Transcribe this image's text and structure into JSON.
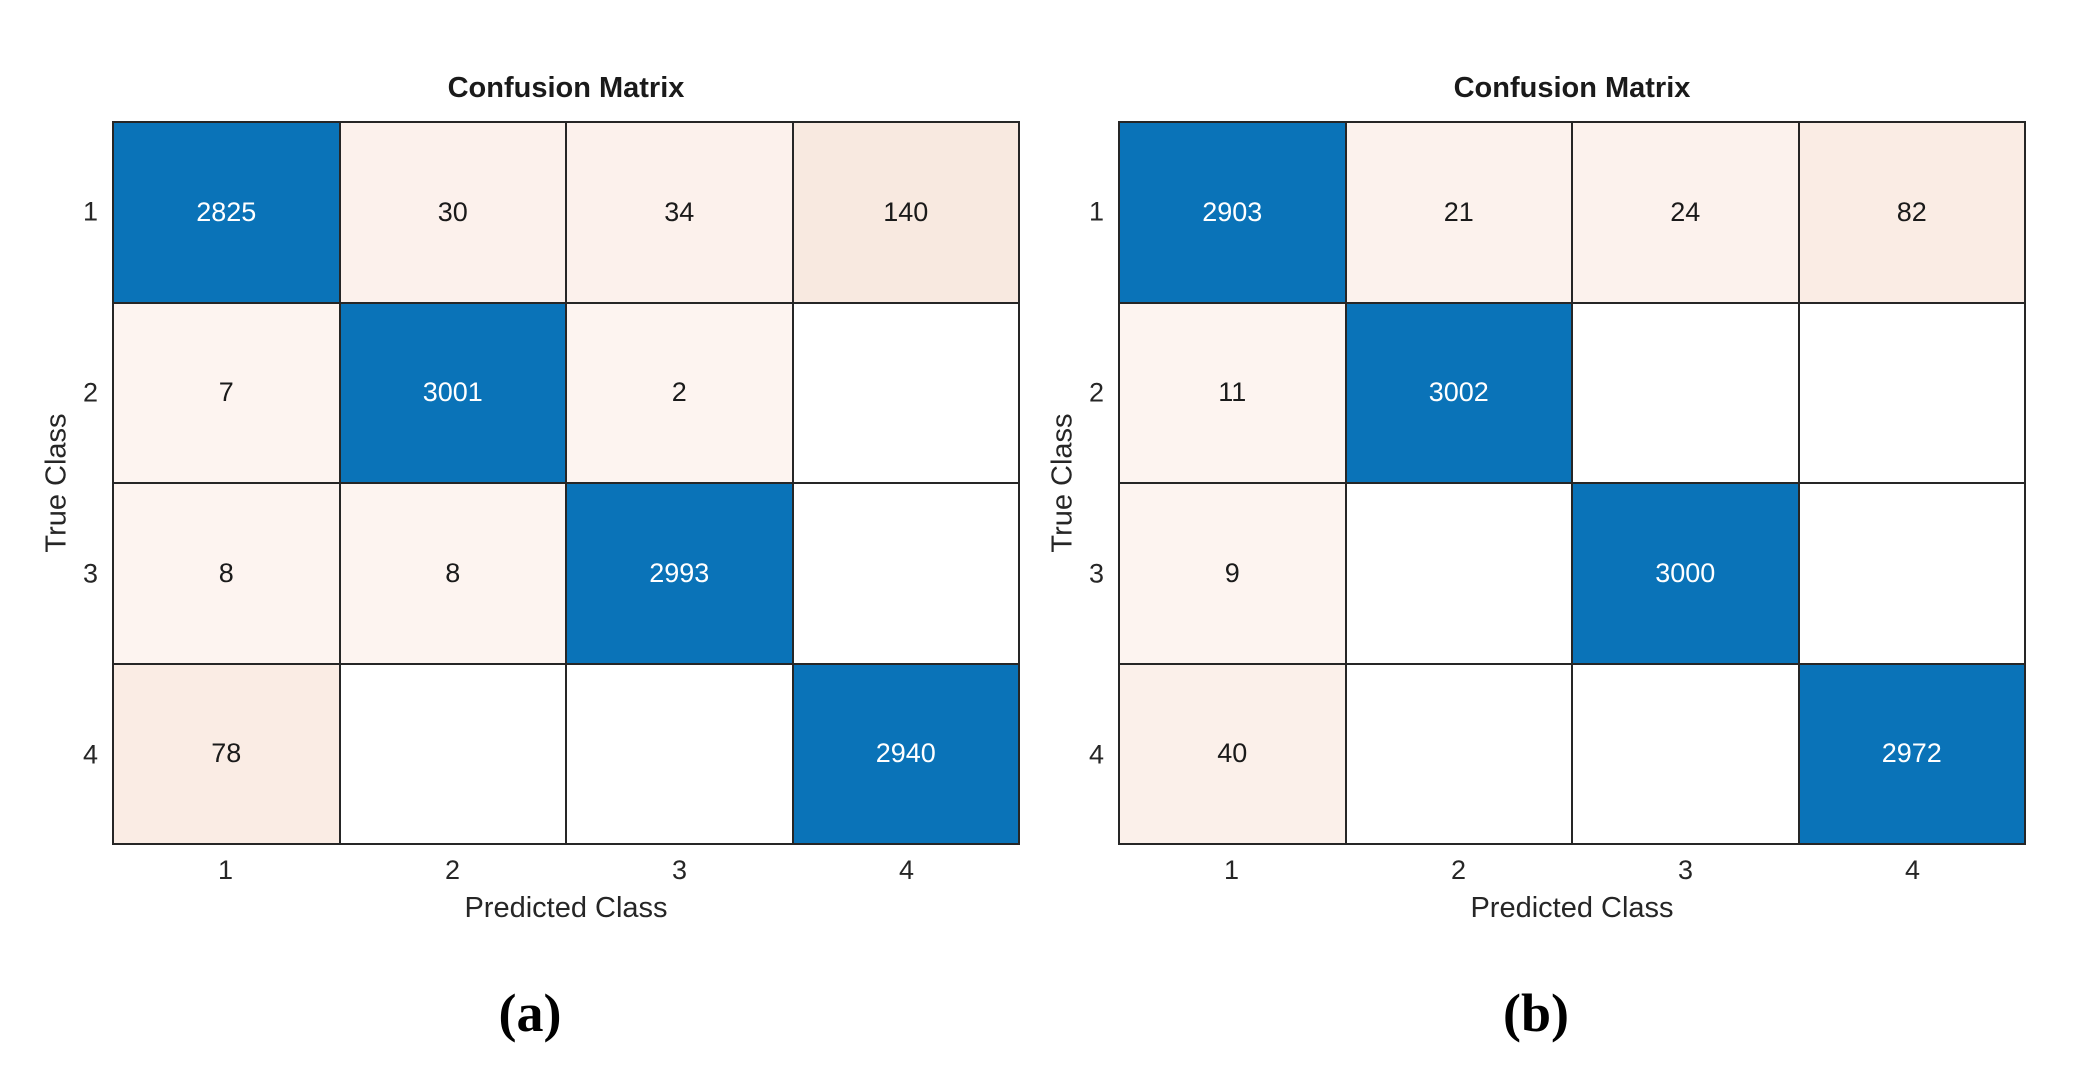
{
  "colors": {
    "background": "#ffffff",
    "diagonal_fill": "#0a73b8",
    "grid_line": "#262626",
    "axis_text": "#262626",
    "value_text_on_diagonal": "#ffffff",
    "value_text_on_light": "#1a1a1a"
  },
  "chart_data": [
    {
      "type": "heatmap",
      "panel": "a",
      "title": "Confusion Matrix",
      "xlabel": "Predicted Class",
      "ylabel": "True Class",
      "x_ticks": [
        "1",
        "2",
        "3",
        "4"
      ],
      "y_ticks": [
        "1",
        "2",
        "3",
        "4"
      ],
      "caption": "(a)",
      "matrix": [
        [
          2825,
          30,
          34,
          140
        ],
        [
          7,
          3001,
          2,
          0
        ],
        [
          8,
          8,
          2993,
          0
        ],
        [
          78,
          0,
          0,
          2940
        ]
      ],
      "cell_fills": [
        [
          "#0a73b8",
          "#fcf1ec",
          "#fcf1ec",
          "#f8e9e0"
        ],
        [
          "#fdf4f0",
          "#0a73b8",
          "#fdf4f0",
          "#ffffff"
        ],
        [
          "#fdf4f0",
          "#fdf4f0",
          "#0a73b8",
          "#ffffff"
        ],
        [
          "#faece4",
          "#ffffff",
          "#ffffff",
          "#0a73b8"
        ]
      ]
    },
    {
      "type": "heatmap",
      "panel": "b",
      "title": "Confusion Matrix",
      "xlabel": "Predicted Class",
      "ylabel": "True Class",
      "x_ticks": [
        "1",
        "2",
        "3",
        "4"
      ],
      "y_ticks": [
        "1",
        "2",
        "3",
        "4"
      ],
      "caption": "(b)",
      "matrix": [
        [
          2903,
          21,
          24,
          82
        ],
        [
          11,
          3002,
          0,
          0
        ],
        [
          9,
          0,
          3000,
          0
        ],
        [
          40,
          0,
          0,
          2972
        ]
      ],
      "cell_fills": [
        [
          "#0a73b8",
          "#fcf2ed",
          "#fcf2ed",
          "#faece4"
        ],
        [
          "#fdf4f0",
          "#0a73b8",
          "#ffffff",
          "#ffffff"
        ],
        [
          "#fdf4f0",
          "#ffffff",
          "#0a73b8",
          "#ffffff"
        ],
        [
          "#fbf0ea",
          "#ffffff",
          "#ffffff",
          "#0a73b8"
        ]
      ]
    }
  ]
}
